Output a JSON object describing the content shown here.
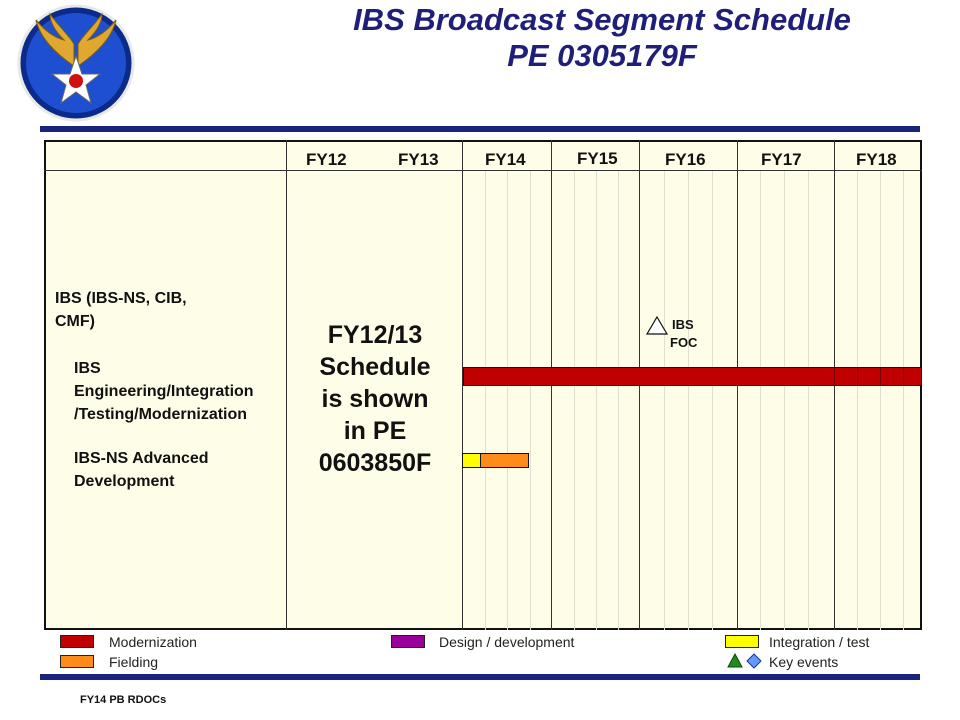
{
  "header": {
    "title_line1": "IBS Broadcast Segment Schedule",
    "title_line2": "PE 0305179F",
    "logo_icon": "usaf-winged-star-icon",
    "colors": {
      "title": "#1f1f7a",
      "rule": "#1a237e"
    }
  },
  "schedule": {
    "fiscal_years": [
      "FY12",
      "FY13",
      "FY14",
      "FY15",
      "FY16",
      "FY17",
      "FY18"
    ],
    "program_label_line1": "IBS (IBS-NS,  CIB,",
    "program_label_line2": "CMF)",
    "rows": [
      {
        "label_lines": [
          "IBS",
          "Engineering/Integration",
          "/Testing/Modernization"
        ]
      },
      {
        "label_lines": [
          "IBS-NS Advanced",
          "Development"
        ]
      }
    ],
    "note_lines": [
      "FY12/13",
      "Schedule",
      "is shown",
      "in PE",
      "0603850F"
    ],
    "milestone": {
      "label_lines": [
        "IBS",
        "FOC"
      ]
    },
    "bars": [
      {
        "row": 0,
        "kind": "Modernization",
        "color": "#c00000"
      },
      {
        "row": 1,
        "kind": "Integration / test",
        "color": "#ffff00"
      },
      {
        "row": 1,
        "kind": "Fielding",
        "color": "#ff8c1a"
      }
    ]
  },
  "legend": {
    "items": [
      {
        "label": "Modernization",
        "color": "#c00000"
      },
      {
        "label": "Fielding",
        "color": "#ff8c1a"
      },
      {
        "label": "Design / development",
        "color": "#990099"
      },
      {
        "label": "Integration  / test",
        "color": "#ffff00"
      },
      {
        "label": "Key events"
      }
    ],
    "key_event_colors": {
      "triangle": "#1e8c1e",
      "diamond": "#6699ff"
    }
  },
  "footer": {
    "text": "FY14 PB RDOCs"
  }
}
